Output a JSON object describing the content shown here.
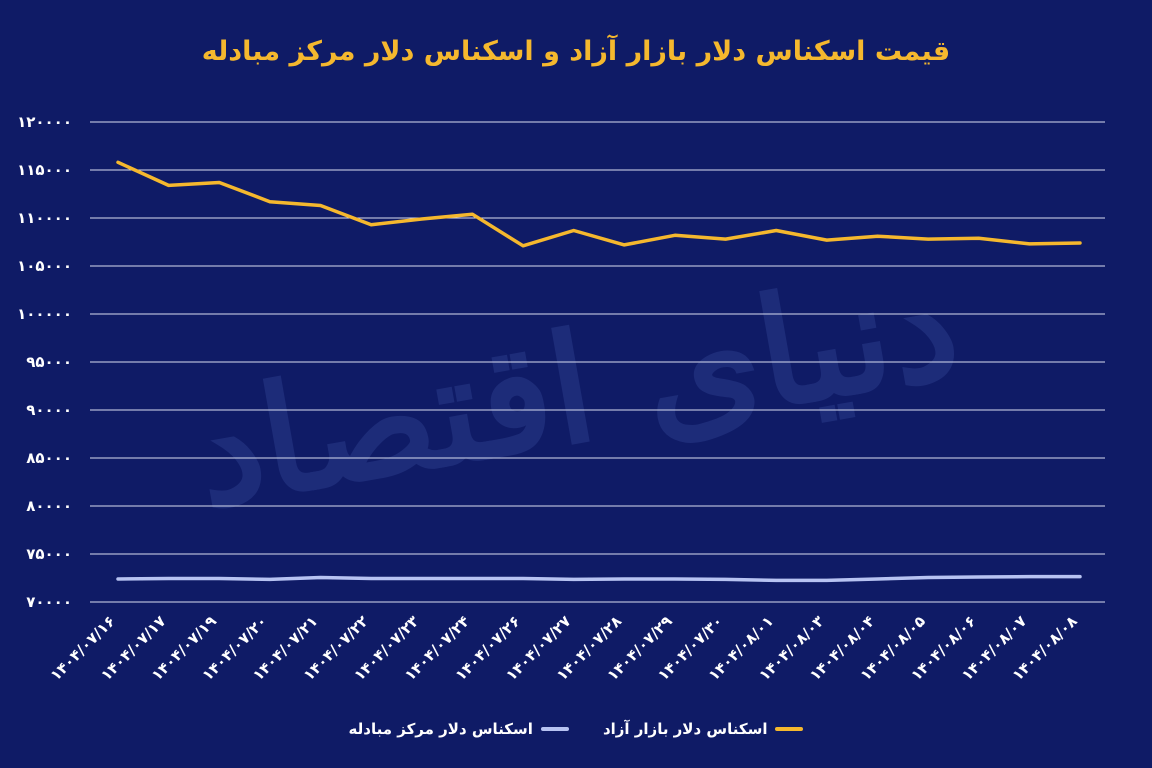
{
  "chart_data": {
    "type": "line",
    "title": "قیمت اسکناس دلار بازار آزاد و اسکناس دلار مرکز مبادله",
    "watermark": "دنیای اقتصاد",
    "x": [
      "۱۴۰۴/۰۷/۱۶",
      "۱۴۰۴/۰۷/۱۷",
      "۱۴۰۴/۰۷/۱۹",
      "۱۴۰۴/۰۷/۲۰",
      "۱۴۰۴/۰۷/۲۱",
      "۱۴۰۴/۰۷/۲۲",
      "۱۴۰۴/۰۷/۲۳",
      "۱۴۰۴/۰۷/۲۴",
      "۱۴۰۴/۰۷/۲۶",
      "۱۴۰۴/۰۷/۲۷",
      "۱۴۰۴/۰۷/۲۸",
      "۱۴۰۴/۰۷/۲۹",
      "۱۴۰۴/۰۷/۳۰",
      "۱۴۰۴/۰۸/۰۱",
      "۱۴۰۴/۰۸/۰۳",
      "۱۴۰۴/۰۸/۰۴",
      "۱۴۰۴/۰۸/۰۵",
      "۱۴۰۴/۰۸/۰۶",
      "۱۴۰۴/۰۸/۰۷",
      "۱۴۰۴/۰۸/۰۸"
    ],
    "yticks": [
      "۷۰۰۰۰",
      "۷۵۰۰۰",
      "۸۰۰۰۰",
      "۸۵۰۰۰",
      "۹۰۰۰۰",
      "۹۵۰۰۰",
      "۱۰۰۰۰۰",
      "۱۰۵۰۰۰",
      "۱۱۰۰۰۰",
      "۱۱۵۰۰۰",
      "۱۲۰۰۰۰"
    ],
    "ylim": [
      70000,
      120000
    ],
    "grid": true,
    "legend_position": "bottom",
    "series": [
      {
        "name": "اسکناس دلار بازار آزاد",
        "color": "#f5b82e",
        "values": [
          115800,
          113400,
          113700,
          111700,
          111300,
          109300,
          109900,
          110400,
          107100,
          108700,
          107200,
          108200,
          107800,
          108700,
          107700,
          108100,
          107800,
          107900,
          107300,
          107400
        ]
      },
      {
        "name": "اسکناس دلار مرکز مبادله",
        "color": "#b7c3f2",
        "values": [
          72400,
          72450,
          72450,
          72350,
          72550,
          72450,
          72450,
          72450,
          72450,
          72350,
          72400,
          72400,
          72350,
          72250,
          72250,
          72400,
          72550,
          72600,
          72650,
          72650
        ]
      }
    ]
  }
}
